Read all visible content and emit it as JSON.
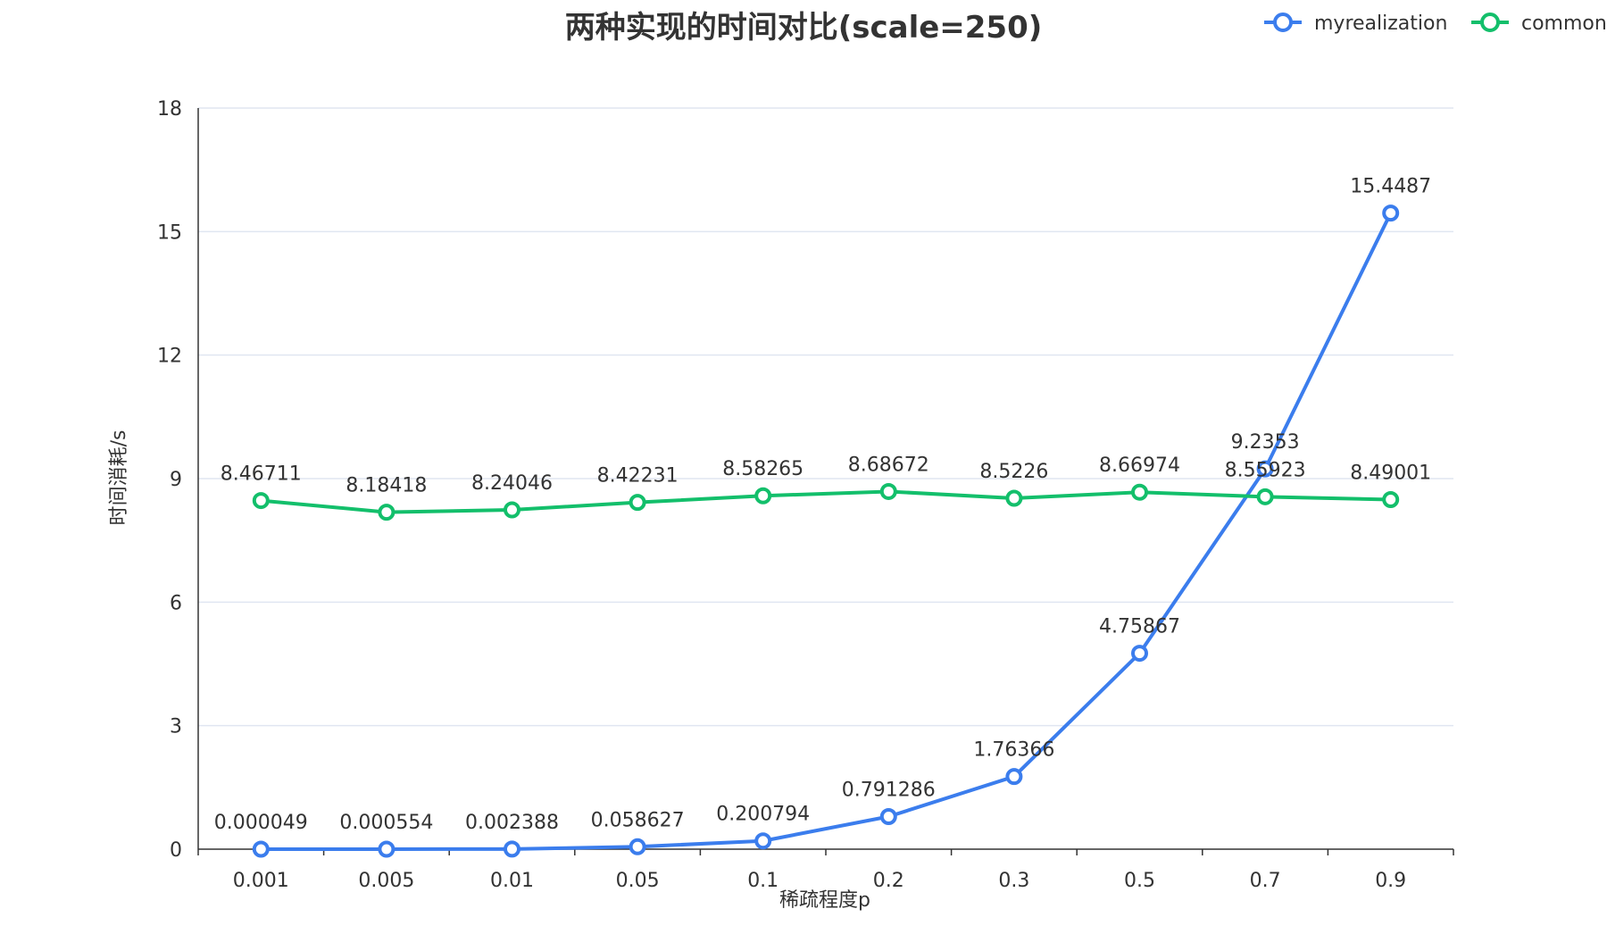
{
  "chart_data": {
    "type": "line",
    "title": "两种实现的时间对比(scale=250)",
    "xlabel": "稀疏程度p",
    "ylabel": "时间消耗/s",
    "categories": [
      "0.001",
      "0.005",
      "0.01",
      "0.05",
      "0.1",
      "0.2",
      "0.3",
      "0.5",
      "0.7",
      "0.9"
    ],
    "ylim": [
      0,
      18
    ],
    "yticks": [
      0,
      3,
      6,
      9,
      12,
      15,
      18
    ],
    "grid": true,
    "legend_position": "top-right",
    "series": [
      {
        "name": "myrealization",
        "color": "#3b7ded",
        "values": [
          4.9e-05,
          0.000554,
          0.002388,
          0.058627,
          0.200794,
          0.791286,
          1.76366,
          4.75867,
          9.2353,
          15.4487
        ],
        "labels": [
          "0.000049",
          "0.000554",
          "0.002388",
          "0.058627",
          "0.200794",
          "0.791286",
          "1.76366",
          "4.75867",
          "9.2353",
          "15.4487"
        ]
      },
      {
        "name": "common",
        "color": "#13bf6b",
        "values": [
          8.46711,
          8.18418,
          8.24046,
          8.42231,
          8.58265,
          8.68672,
          8.5226,
          8.66974,
          8.55923,
          8.49001
        ],
        "labels": [
          "8.46711",
          "8.18418",
          "8.24046",
          "8.42231",
          "8.58265",
          "8.68672",
          "8.5226",
          "8.66974",
          "8.55923",
          "8.49001"
        ]
      }
    ]
  }
}
